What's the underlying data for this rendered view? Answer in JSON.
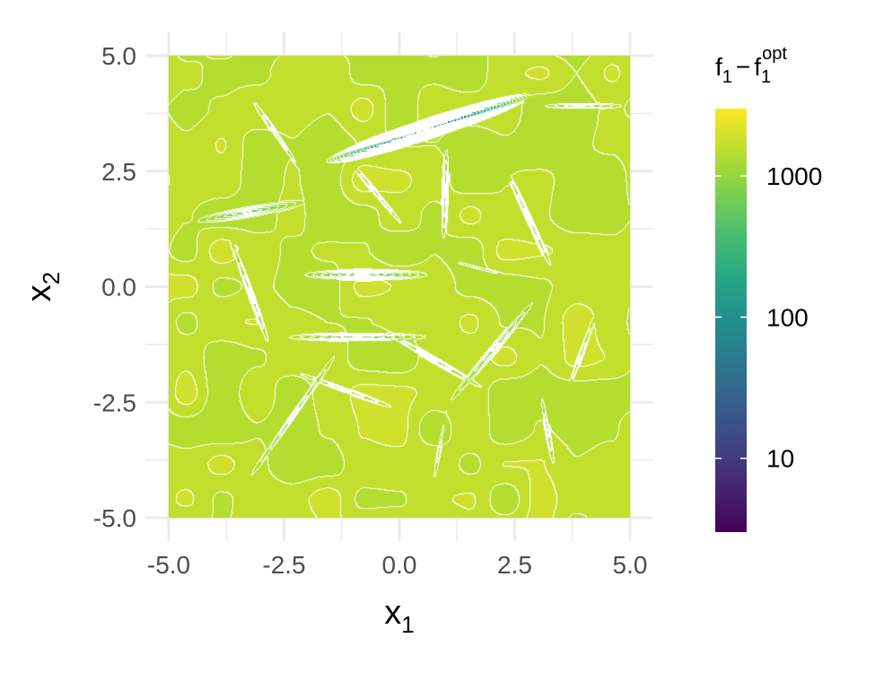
{
  "chart_data": {
    "type": "heatmap",
    "subtype": "filled-contour",
    "x": {
      "label_main": "x",
      "label_sub": "1",
      "lim": [
        -5,
        5
      ],
      "ticks": [
        -5,
        -2.5,
        0,
        2.5,
        5
      ],
      "tick_labels": [
        "-5.0",
        "-2.5",
        "0.0",
        "2.5",
        "5.0"
      ]
    },
    "y": {
      "label_main": "x",
      "label_sub": "2",
      "lim": [
        -5,
        5
      ],
      "ticks": [
        -5,
        -2.5,
        0,
        2.5,
        5
      ],
      "tick_labels": [
        "-5.0",
        "-2.5",
        "0.0",
        "2.5",
        "5.0"
      ]
    },
    "grid": true,
    "legend": {
      "position": "right",
      "scale": "log10",
      "palette": "viridis",
      "range": [
        3,
        3000
      ],
      "ticks": [
        10,
        100,
        1000
      ],
      "tick_labels": [
        "10",
        "100",
        "1000"
      ],
      "title": {
        "main": "f",
        "sub1": "1",
        "minus": "−",
        "main2": "f",
        "sub2": "1",
        "sup2": "opt"
      }
    },
    "ellipses": [
      {
        "x": 0.6,
        "y": 3.4,
        "angle": 18,
        "a": 2.6,
        "b": 0.25,
        "min": 20
      },
      {
        "x": -0.8,
        "y": 0.25,
        "angle": 0,
        "a": 2.0,
        "b": 0.17,
        "min": 500
      },
      {
        "x": -0.9,
        "y": -1.1,
        "angle": 0,
        "a": 2.2,
        "b": 0.14,
        "min": 600
      },
      {
        "x": -3.3,
        "y": 1.6,
        "angle": 10,
        "a": 1.9,
        "b": 0.2,
        "min": 600
      },
      {
        "x": 2.1,
        "y": -1.3,
        "angle": 50,
        "a": 2.4,
        "b": 0.14,
        "min": 700
      },
      {
        "x": -2.3,
        "y": -2.8,
        "angle": 55,
        "a": 2.7,
        "b": 0.12,
        "min": 800
      },
      {
        "x": 1.0,
        "y": 2.0,
        "angle": 88,
        "a": 2.0,
        "b": 0.12,
        "min": 750
      },
      {
        "x": 3.9,
        "y": 3.9,
        "angle": 0,
        "a": 1.6,
        "b": 0.12,
        "min": 800
      },
      {
        "x": 0.6,
        "y": -1.5,
        "angle": -30,
        "a": 2.6,
        "b": 0.13,
        "min": 900
      },
      {
        "x": 2.8,
        "y": 1.5,
        "angle": -65,
        "a": 2.2,
        "b": 0.12,
        "min": 900
      },
      {
        "x": -3.2,
        "y": -0.2,
        "angle": -70,
        "a": 2.0,
        "b": 0.12,
        "min": 900
      },
      {
        "x": -2.6,
        "y": 3.2,
        "angle": -55,
        "a": 2.0,
        "b": 0.12,
        "min": 1000
      },
      {
        "x": 3.2,
        "y": -3.0,
        "angle": -80,
        "a": 1.8,
        "b": 0.12,
        "min": 1000
      },
      {
        "x": -1.3,
        "y": -2.2,
        "angle": -20,
        "a": 1.9,
        "b": 0.1,
        "min": 1000
      },
      {
        "x": 0.9,
        "y": -3.4,
        "angle": 80,
        "a": 1.8,
        "b": 0.1,
        "min": 1100
      },
      {
        "x": 3.9,
        "y": -1.6,
        "angle": 70,
        "a": 1.8,
        "b": 0.1,
        "min": 1100
      },
      {
        "x": -0.4,
        "y": 1.9,
        "angle": -50,
        "a": 1.7,
        "b": 0.1,
        "min": 1100
      },
      {
        "x": 1.7,
        "y": 0.4,
        "angle": -15,
        "a": 2.0,
        "b": 0.1,
        "min": 1100
      }
    ]
  }
}
